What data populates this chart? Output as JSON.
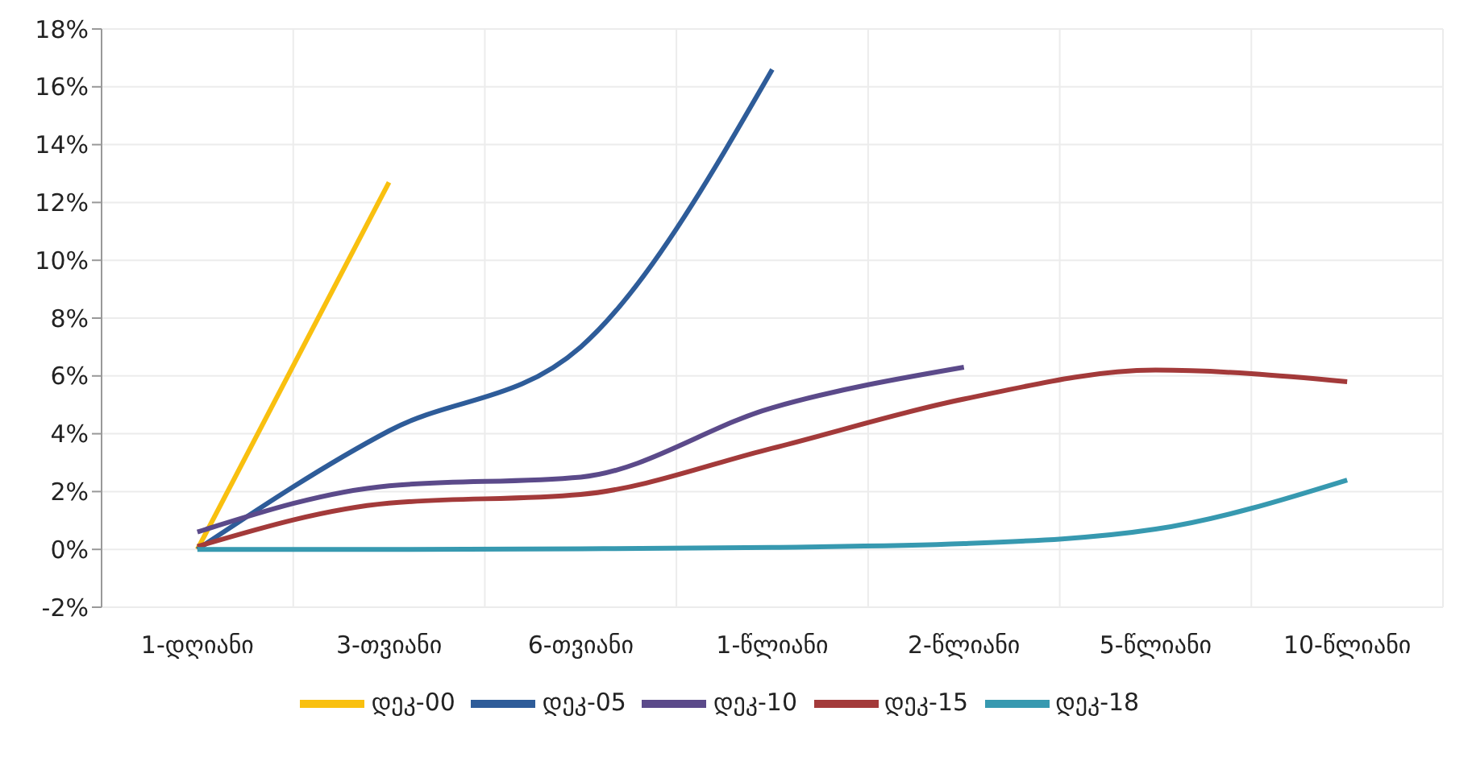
{
  "chart_data": {
    "type": "line",
    "categories": [
      "1-დღიანი",
      "3-თვიანი",
      "6-თვიანი",
      "1-წლიანი",
      "2-წლიანი",
      "5-წლიანი",
      "10-წლიანი"
    ],
    "series": [
      {
        "name": "დეკ-00",
        "color": "#f9c00f",
        "values": [
          0,
          12.7,
          null,
          null,
          null,
          null,
          null
        ]
      },
      {
        "name": "დეკ-05",
        "color": "#2e5c99",
        "values": [
          0,
          4.1,
          7.0,
          16.6,
          null,
          null,
          null
        ]
      },
      {
        "name": "დეკ-10",
        "color": "#5b4a8a",
        "values": [
          0.6,
          2.2,
          2.5,
          4.9,
          6.3,
          null,
          null
        ]
      },
      {
        "name": "დეკ-15",
        "color": "#a33a3a",
        "values": [
          0.1,
          1.6,
          1.9,
          3.5,
          5.2,
          6.2,
          5.8
        ]
      },
      {
        "name": "დეკ-18",
        "color": "#3799b0",
        "values": [
          0,
          0,
          0.02,
          0.07,
          0.2,
          0.7,
          2.4
        ]
      }
    ],
    "ylim": [
      -2,
      18
    ],
    "yticks": [
      {
        "value": -2,
        "label": "-2%"
      },
      {
        "value": 0,
        "label": "0%"
      },
      {
        "value": 2,
        "label": "2%"
      },
      {
        "value": 4,
        "label": "4%"
      },
      {
        "value": 6,
        "label": "6%"
      },
      {
        "value": 8,
        "label": "8%"
      },
      {
        "value": 10,
        "label": "10%"
      },
      {
        "value": 12,
        "label": "12%"
      },
      {
        "value": 14,
        "label": "14%"
      },
      {
        "value": 16,
        "label": "16%"
      },
      {
        "value": 18,
        "label": "18%"
      }
    ],
    "grid": true,
    "legend": "bottom",
    "marker": "none",
    "line_style": "solid"
  }
}
